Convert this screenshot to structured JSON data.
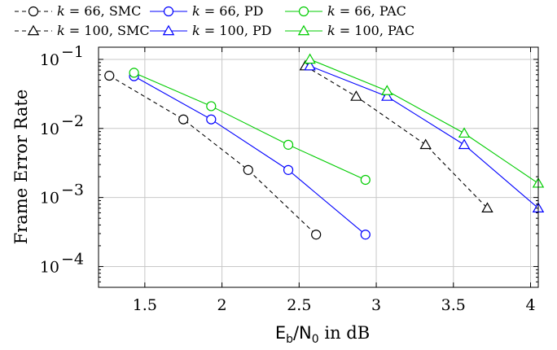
{
  "chart_data": {
    "type": "line",
    "title": "",
    "xlabel": "E_b/N_0 in dB",
    "xlabel_parts": {
      "main": "E",
      "sub1": "b",
      "slash": "/N",
      "sub2": "0",
      "tail": " in dB"
    },
    "ylabel": "Frame Error Rate",
    "xlim": [
      1.2,
      4.05
    ],
    "ylim": [
      5e-05,
      0.15
    ],
    "yscale": "log",
    "grid": true,
    "legend_position": "top",
    "x_ticks": [
      1.5,
      2,
      2.5,
      3,
      3.5,
      4
    ],
    "x_tick_labels": [
      "1.5",
      "2",
      "2.5",
      "3",
      "3.5",
      "4"
    ],
    "y_ticks": [
      0.1,
      0.01,
      0.001,
      0.0001
    ],
    "y_tick_labels": [
      {
        "base": "10",
        "exp": "−1"
      },
      {
        "base": "10",
        "exp": "−2"
      },
      {
        "base": "10",
        "exp": "−3"
      },
      {
        "base": "10",
        "exp": "−4"
      }
    ],
    "series": [
      {
        "name": "k = 66, SMC",
        "k": "66",
        "method": "SMC",
        "color": "#000000",
        "dash": true,
        "marker": "circle",
        "x": [
          1.27,
          1.75,
          2.17,
          2.61
        ],
        "y": [
          0.058,
          0.0135,
          0.0025,
          0.00029
        ]
      },
      {
        "name": "k = 66, PD",
        "k": "66",
        "method": "PD",
        "color": "#0000ff",
        "dash": false,
        "marker": "circle",
        "x": [
          1.43,
          1.93,
          2.43,
          2.93
        ],
        "y": [
          0.057,
          0.0135,
          0.0025,
          0.00029
        ]
      },
      {
        "name": "k = 66, PAC",
        "k": "66",
        "method": "PAC",
        "color": "#00cc00",
        "dash": false,
        "marker": "circle",
        "x": [
          1.43,
          1.93,
          2.43,
          2.93
        ],
        "y": [
          0.064,
          0.021,
          0.0058,
          0.0018
        ]
      },
      {
        "name": "k = 100, SMC",
        "k": "100",
        "method": "SMC",
        "color": "#000000",
        "dash": true,
        "marker": "triangle",
        "x": [
          2.54,
          2.87,
          3.32,
          3.72
        ],
        "y": [
          0.08,
          0.029,
          0.0058,
          0.0007
        ]
      },
      {
        "name": "k = 100, PD",
        "k": "100",
        "method": "PD",
        "color": "#0000ff",
        "dash": false,
        "marker": "triangle",
        "x": [
          2.57,
          3.07,
          3.57,
          4.05
        ],
        "y": [
          0.08,
          0.029,
          0.0058,
          0.0007
        ]
      },
      {
        "name": "k = 100, PAC",
        "k": "100",
        "method": "PAC",
        "color": "#00cc00",
        "dash": false,
        "marker": "triangle",
        "x": [
          2.57,
          3.07,
          3.57,
          4.05
        ],
        "y": [
          0.1,
          0.035,
          0.0085,
          0.0016
        ]
      }
    ]
  }
}
